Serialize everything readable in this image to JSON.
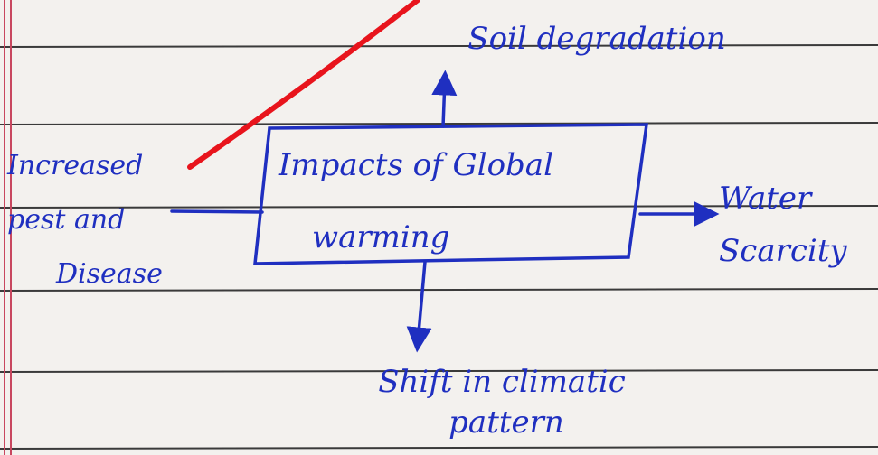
{
  "center": {
    "lines": [
      "Impacts of Global",
      "warming"
    ]
  },
  "top": {
    "lines": [
      "Soil degradation"
    ]
  },
  "left": {
    "lines": [
      "Increased",
      "pest and",
      "Disease"
    ]
  },
  "right": {
    "lines": [
      "Water",
      "Scarcity"
    ]
  },
  "bottom": {
    "lines": [
      "Shift in climatic",
      "pattern"
    ]
  }
}
